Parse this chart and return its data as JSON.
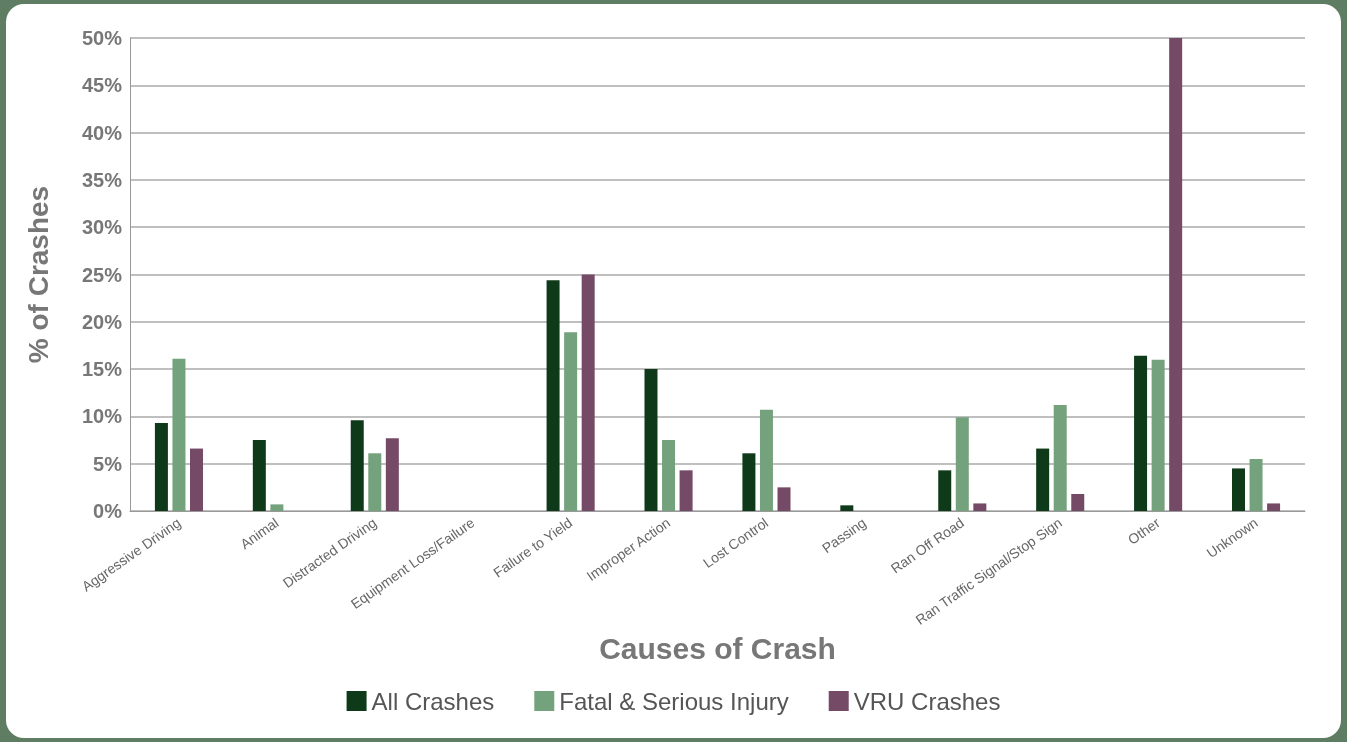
{
  "chart_data": {
    "type": "bar",
    "xlabel": "Causes of Crash",
    "ylabel": "% of Crashes",
    "categories": [
      "Aggressive Driving",
      "Animal",
      "Distracted Driving",
      "Equipment Loss/Failure",
      "Failure to Yield",
      "Improper Action",
      "Lost Control",
      "Passing",
      "Ran Off Road",
      "Ran Traffic Signal/Stop Sign",
      "Other",
      "Unknown"
    ],
    "series": [
      {
        "name": "All Crashes",
        "color": "#0f3a1a",
        "values": [
          9.3,
          7.5,
          9.6,
          0,
          24.4,
          15,
          6.1,
          0.6,
          4.3,
          6.6,
          16.4,
          4.5
        ]
      },
      {
        "name": "Fatal & Serious Injury",
        "color": "#74a27c",
        "values": [
          16.1,
          0.7,
          6.1,
          0,
          18.9,
          7.5,
          10.7,
          0,
          9.9,
          11.2,
          16,
          5.5
        ]
      },
      {
        "name": "VRU Crashes",
        "color": "#744a66",
        "values": [
          6.6,
          0,
          7.7,
          0,
          25,
          4.3,
          2.5,
          0,
          0.8,
          1.8,
          50,
          0.8
        ]
      }
    ],
    "ylim": [
      0,
      50
    ],
    "yticks": [
      {
        "value": 0,
        "label": "0%"
      },
      {
        "value": 5,
        "label": "5%"
      },
      {
        "value": 10,
        "label": "10%"
      },
      {
        "value": 15,
        "label": "15%"
      },
      {
        "value": 20,
        "label": "20%"
      },
      {
        "value": 25,
        "label": "25%"
      },
      {
        "value": 30,
        "label": "30%"
      },
      {
        "value": 35,
        "label": "35%"
      },
      {
        "value": 40,
        "label": "40%"
      },
      {
        "value": 45,
        "label": "45%"
      },
      {
        "value": 50,
        "label": "50%"
      }
    ],
    "grid": "y",
    "legend": "bottom"
  }
}
